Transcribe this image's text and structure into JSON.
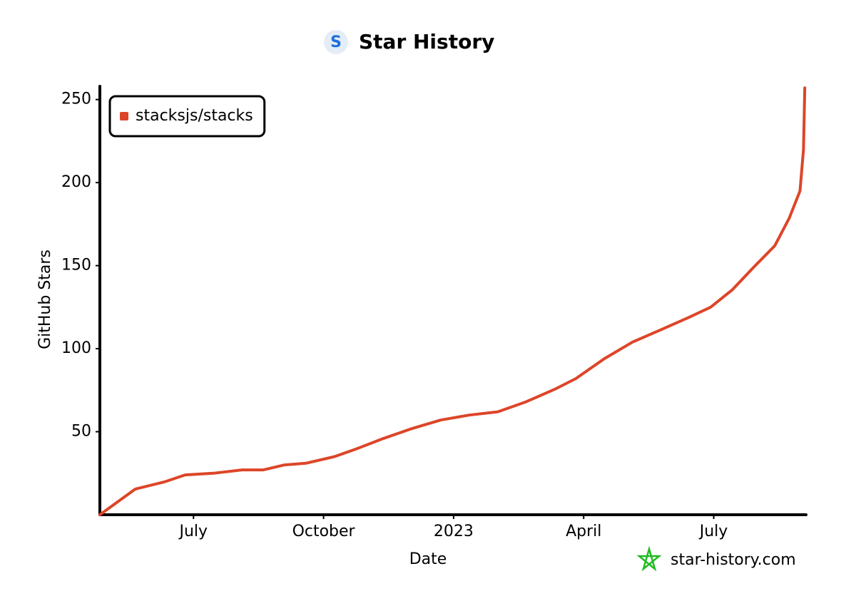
{
  "chart_data": {
    "type": "line",
    "title": "Star History",
    "x_label": "Date",
    "y_label": "GitHub Stars",
    "watermark": "star-history.com",
    "legend": "upper left",
    "xlim": [
      0.84,
      17.13
    ],
    "xticks": [
      {
        "value": 3,
        "label": "July"
      },
      {
        "value": 6,
        "label": "October"
      },
      {
        "value": 9,
        "label": "2023"
      },
      {
        "value": 12,
        "label": "April"
      },
      {
        "value": 15,
        "label": "July"
      }
    ],
    "ylim": [
      0,
      258
    ],
    "yticks": [
      50,
      100,
      150,
      200,
      250
    ],
    "series": [
      {
        "name": "stacksjs/stacks",
        "color": "#dd4528",
        "x": [
          0.84,
          1.66,
          2.32,
          2.81,
          3.46,
          4.12,
          4.61,
          5.1,
          5.59,
          6.25,
          6.74,
          7.39,
          8.05,
          8.7,
          9.36,
          10.02,
          10.67,
          11.33,
          11.82,
          12.48,
          13.13,
          13.79,
          14.44,
          14.93,
          15.43,
          15.92,
          16.41,
          16.74,
          16.99,
          17.07,
          17.1
        ],
        "values": [
          0,
          15.5,
          19.7,
          24,
          25,
          27,
          27,
          30,
          31,
          35,
          39.5,
          46,
          52,
          57,
          60,
          62,
          68,
          75.5,
          82,
          94,
          104,
          111.5,
          119,
          125,
          135.5,
          149,
          162,
          178.5,
          195,
          220,
          257
        ]
      }
    ]
  }
}
